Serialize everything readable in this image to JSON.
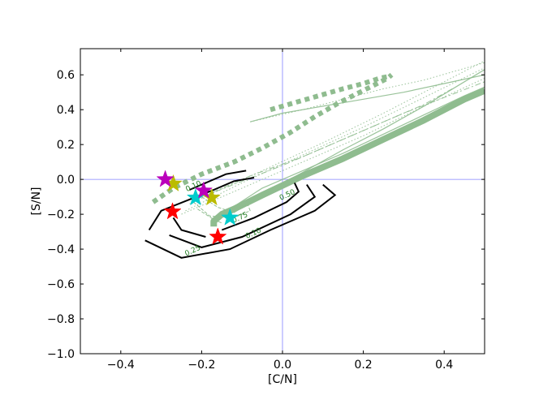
{
  "chart_data": {
    "type": "line",
    "xlabel": "[C/N]",
    "ylabel": "[S/N]",
    "xlim": [
      -0.5,
      0.5
    ],
    "ylim": [
      -1.0,
      0.75
    ],
    "x_ticks": [
      -0.4,
      -0.2,
      0.0,
      0.2,
      0.4
    ],
    "x_tick_labels": [
      "−0.4",
      "−0.2",
      "0.0",
      "0.2",
      "0.4"
    ],
    "y_ticks": [
      -1.0,
      -0.8,
      -0.6,
      -0.4,
      -0.2,
      0.0,
      0.2,
      0.4,
      0.6
    ],
    "y_tick_labels": [
      "−1.0",
      "−0.8",
      "−0.6",
      "−0.4",
      "−0.2",
      "0.0",
      "0.2",
      "0.4",
      "0.6"
    ],
    "reference_lines": {
      "x": 0.0,
      "y": 0.0,
      "color": "#8080ff"
    },
    "grid": false,
    "colors": {
      "contour_black": "#000000",
      "model_green": "#8fbc8f",
      "contour_label_green": "#1e7a1e"
    },
    "black_contours": [
      {
        "x": [
          -0.34,
          -0.25,
          -0.13,
          -0.03,
          0.08,
          0.13,
          0.1
        ],
        "y": [
          -0.35,
          -0.45,
          -0.4,
          -0.29,
          -0.18,
          -0.09,
          -0.03
        ]
      },
      {
        "x": [
          -0.28,
          -0.2,
          -0.1,
          0.02,
          0.08,
          0.06
        ],
        "y": [
          -0.32,
          -0.39,
          -0.33,
          -0.2,
          -0.1,
          -0.03
        ]
      },
      {
        "x": [
          -0.27,
          -0.25,
          -0.19
        ],
        "y": [
          -0.22,
          -0.29,
          -0.33
        ]
      },
      {
        "x": [
          -0.15,
          -0.07,
          0.01,
          0.04,
          0.03
        ],
        "y": [
          -0.29,
          -0.22,
          -0.13,
          -0.07,
          -0.02
        ]
      },
      {
        "x": [
          -0.33,
          -0.3,
          -0.17,
          -0.12,
          -0.07
        ],
        "y": [
          -0.29,
          -0.18,
          -0.06,
          -0.01,
          0.01
        ]
      },
      {
        "x": [
          -0.23,
          -0.14,
          -0.09
        ],
        "y": [
          -0.06,
          0.03,
          0.05
        ]
      }
    ],
    "thin_green_contours": [
      {
        "x": [
          -0.22,
          -0.18,
          -0.12,
          -0.08,
          -0.09
        ],
        "y": [
          -0.13,
          -0.21,
          -0.22,
          -0.18,
          -0.12
        ]
      },
      {
        "x": [
          -0.2,
          -0.16,
          -0.12,
          -0.1
        ],
        "y": [
          -0.1,
          -0.16,
          -0.19,
          -0.15
        ]
      },
      {
        "x": [
          -0.21,
          -0.17,
          -0.15
        ],
        "y": [
          -0.17,
          -0.23,
          -0.25
        ]
      }
    ],
    "contour_labels": [
      {
        "text": "0.10",
        "x": -0.22,
        "y": -0.04
      },
      {
        "text": "0.50",
        "x": 0.012,
        "y": -0.09
      },
      {
        "text": "0.75",
        "x": -0.105,
        "y": -0.22
      },
      {
        "text": "0.10",
        "x": -0.072,
        "y": -0.31
      },
      {
        "text": "0.25",
        "x": -0.222,
        "y": -0.41
      }
    ],
    "model_tracks": [
      {
        "style": "dotted-thick",
        "x": [
          -0.32,
          -0.27,
          -0.2,
          -0.12,
          -0.05,
          0.02,
          0.08,
          0.14,
          0.2,
          0.26,
          0.27
        ],
        "y": [
          -0.13,
          -0.05,
          0.03,
          0.1,
          0.18,
          0.27,
          0.36,
          0.44,
          0.51,
          0.58,
          0.6
        ]
      },
      {
        "style": "dotted-thick",
        "x": [
          -0.03,
          0.03,
          0.09,
          0.15,
          0.2,
          0.24,
          0.26
        ],
        "y": [
          0.4,
          0.44,
          0.48,
          0.52,
          0.55,
          0.58,
          0.59
        ]
      },
      {
        "style": "solid-thick",
        "x": [
          -0.17,
          -0.17,
          -0.15,
          -0.12,
          -0.05,
          0.05,
          0.15,
          0.25,
          0.35,
          0.45,
          0.5
        ],
        "y": [
          -0.27,
          -0.24,
          -0.2,
          -0.17,
          -0.09,
          0.02,
          0.12,
          0.23,
          0.34,
          0.46,
          0.51
        ]
      },
      {
        "style": "solid-thin",
        "x": [
          -0.15,
          -0.05,
          0.05,
          0.15,
          0.25,
          0.35,
          0.45,
          0.5
        ],
        "y": [
          -0.2,
          -0.05,
          0.05,
          0.15,
          0.26,
          0.37,
          0.48,
          0.53
        ]
      },
      {
        "style": "solid-thin",
        "x": [
          -0.12,
          -0.03,
          0.05,
          0.15,
          0.25,
          0.35,
          0.45,
          0.5
        ],
        "y": [
          -0.19,
          -0.06,
          0.04,
          0.17,
          0.29,
          0.42,
          0.56,
          0.63
        ]
      },
      {
        "style": "solid-thin",
        "x": [
          -0.08,
          0.0,
          0.1,
          0.2,
          0.3,
          0.4,
          0.5
        ],
        "y": [
          0.33,
          0.38,
          0.42,
          0.46,
          0.5,
          0.55,
          0.6
        ]
      },
      {
        "style": "dashdot-thin",
        "x": [
          -0.22,
          -0.1,
          0.0,
          0.1,
          0.2,
          0.3,
          0.4,
          0.5
        ],
        "y": [
          -0.12,
          -0.01,
          0.08,
          0.18,
          0.28,
          0.38,
          0.47,
          0.56
        ]
      },
      {
        "style": "dashdot-thin",
        "x": [
          -0.2,
          -0.08,
          0.05,
          0.15,
          0.25,
          0.35,
          0.42
        ],
        "y": [
          -0.1,
          0.02,
          0.13,
          0.23,
          0.33,
          0.43,
          0.52
        ]
      },
      {
        "style": "dotted-thin",
        "x": [
          -0.25,
          -0.1,
          0.05,
          0.2,
          0.35,
          0.5
        ],
        "y": [
          -0.2,
          -0.05,
          0.1,
          0.25,
          0.42,
          0.58
        ]
      },
      {
        "style": "dotted-thin",
        "x": [
          -0.23,
          -0.05,
          0.1,
          0.25,
          0.4,
          0.5
        ],
        "y": [
          -0.14,
          0.05,
          0.21,
          0.38,
          0.56,
          0.68
        ]
      },
      {
        "style": "dotted-thin",
        "x": [
          -0.24,
          -0.1,
          0.05,
          0.2,
          0.35,
          0.5
        ],
        "y": [
          -0.18,
          -0.02,
          0.14,
          0.3,
          0.47,
          0.64
        ]
      },
      {
        "style": "dotted-thin",
        "x": [
          -0.08,
          0.05,
          0.15,
          0.25,
          0.35,
          0.5
        ],
        "y": [
          0.33,
          0.4,
          0.46,
          0.52,
          0.57,
          0.67
        ]
      }
    ],
    "stars": [
      {
        "color": "#ff0000",
        "x": -0.272,
        "y": -0.185
      },
      {
        "color": "#ff0000",
        "x": -0.16,
        "y": -0.33
      },
      {
        "color": "#00cccc",
        "x": -0.215,
        "y": -0.105
      },
      {
        "color": "#00cccc",
        "x": -0.13,
        "y": -0.22
      },
      {
        "color": "#bbbb00",
        "x": -0.27,
        "y": -0.025
      },
      {
        "color": "#bbbb00",
        "x": -0.175,
        "y": -0.105
      },
      {
        "color": "#bb00bb",
        "x": -0.29,
        "y": 0.0
      },
      {
        "color": "#bb00bb",
        "x": -0.195,
        "y": -0.065
      }
    ]
  }
}
